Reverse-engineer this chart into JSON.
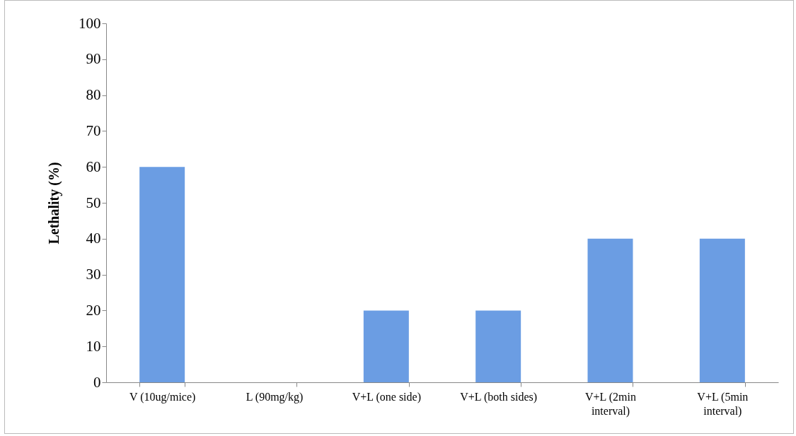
{
  "chart_data": {
    "type": "bar",
    "ylabel": "Lethality (%)",
    "categories": [
      "V (10ug/mice)",
      "L (90mg/kg)",
      "V+L (one side)",
      "V+L (both sides)",
      "V+L (2min interval)",
      "V+L (5min interval)"
    ],
    "values": [
      60,
      0,
      20,
      20,
      40,
      40
    ],
    "color": "#6b9de3",
    "ylim": [
      0,
      100
    ],
    "yticks": [
      0,
      10,
      20,
      30,
      40,
      50,
      60,
      70,
      80,
      90,
      100
    ],
    "grid": false
  }
}
